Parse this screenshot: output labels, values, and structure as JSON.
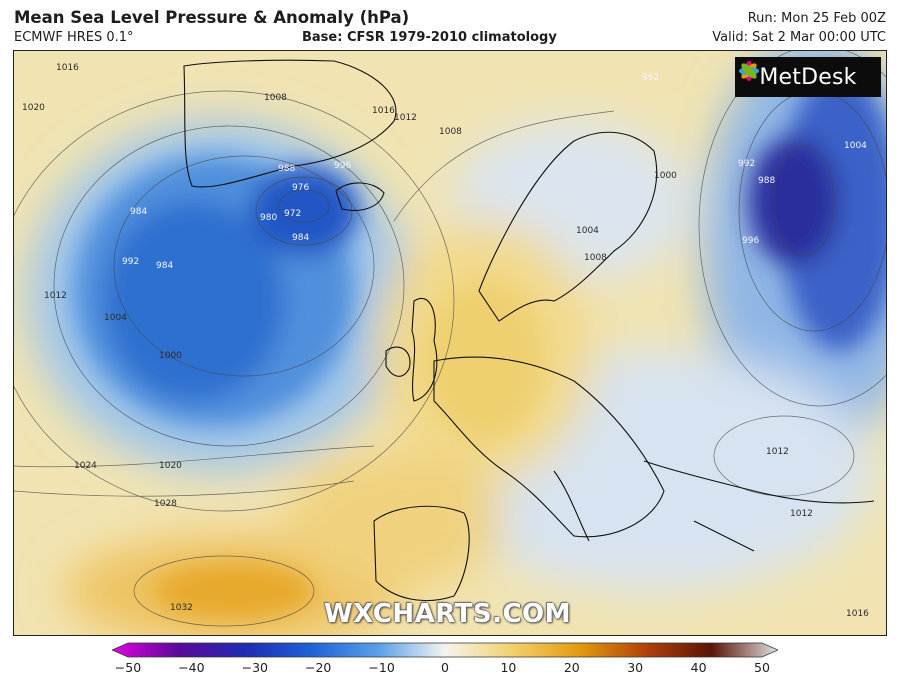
{
  "header": {
    "title": "Mean Sea Level Pressure & Anomaly (hPa)",
    "model": "ECMWF HRES 0.1°",
    "base": "Base: CFSR 1979-2010 climatology",
    "run": "Run: Mon 25 Feb 00Z",
    "valid": "Valid: Sat 2 Mar 00:00 UTC"
  },
  "branding": {
    "logo_text": "MetDesk",
    "watermark": "WXCHARTS.COM"
  },
  "map": {
    "isobar_labels": [
      "1016",
      "1020",
      "1008",
      "1016",
      "1012",
      "1008",
      "992",
      "988",
      "996",
      "976",
      "972",
      "980",
      "984",
      "984",
      "984",
      "1012",
      "1004",
      "1000",
      "992",
      "1000",
      "1004",
      "1008",
      "992",
      "988",
      "996",
      "1004",
      "1012",
      "1024",
      "1020",
      "1028",
      "1032",
      "1016",
      "1012"
    ]
  },
  "colorbar": {
    "ticks": [
      "−50",
      "−40",
      "−30",
      "−20",
      "−10",
      "0",
      "10",
      "20",
      "30",
      "40",
      "50"
    ],
    "colors": [
      "#e000e0",
      "#5a0a9a",
      "#1f2bb3",
      "#1f62d6",
      "#5aa0e8",
      "#c9def2",
      "#fdf3c6",
      "#f2c85a",
      "#e39c10",
      "#b2420a",
      "#5a1408",
      "#e0e0e0"
    ]
  }
}
